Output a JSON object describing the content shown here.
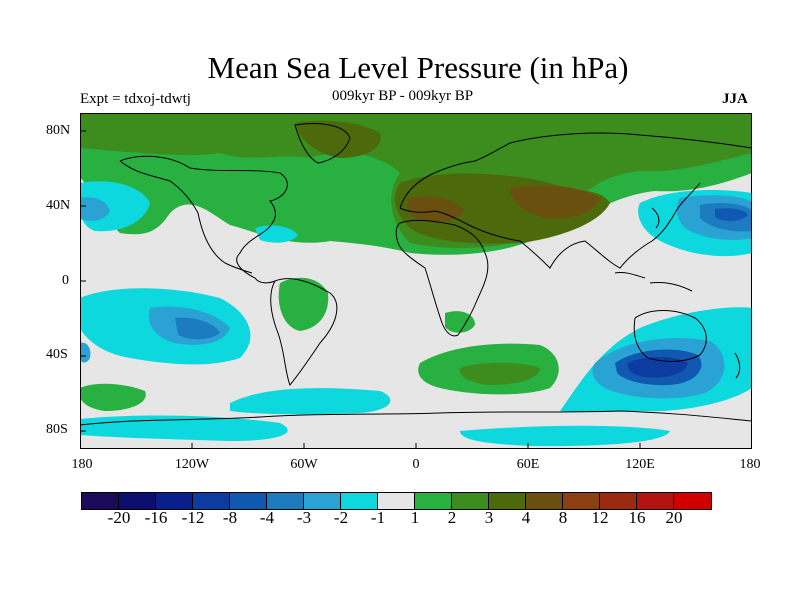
{
  "title": "Mean Sea Level Pressure (in hPa)",
  "experiment": "Expt = tdxoj-tdwtj",
  "period": "009kyr BP - 009kyr BP",
  "season": "JJA",
  "lat_labels": [
    "80N",
    "40N",
    "0",
    "40S",
    "80S"
  ],
  "lon_labels": [
    "180",
    "120W",
    "60W",
    "0",
    "60E",
    "120E",
    "180"
  ],
  "colorbar": {
    "colors": [
      "#1c0a5a",
      "#0d0f70",
      "#0a1f8c",
      "#0c3ba2",
      "#1058b0",
      "#1d7cc0",
      "#2aa3d4",
      "#0cd8de",
      "#e6e6e6",
      "#28b040",
      "#3c8c1e",
      "#4c6a0c",
      "#6a5010",
      "#8a4010",
      "#9a2a10",
      "#b41410",
      "#d00000"
    ],
    "labels": [
      "-20",
      "-16",
      "-12",
      "-8",
      "-4",
      "-3",
      "-2",
      "-1",
      "1",
      "2",
      "3",
      "4",
      "8",
      "12",
      "16",
      "20"
    ]
  },
  "colors": {
    "background": "#e6e6e6",
    "neg1": "#0cd8de",
    "neg2": "#2aa3d4",
    "neg3": "#1d7cc0",
    "neg4": "#1058b0",
    "neg8": "#0c3ba2",
    "pos1": "#28b040",
    "pos2": "#3c8c1e",
    "pos3": "#4c6a0c",
    "pos4": "#6a5010"
  }
}
